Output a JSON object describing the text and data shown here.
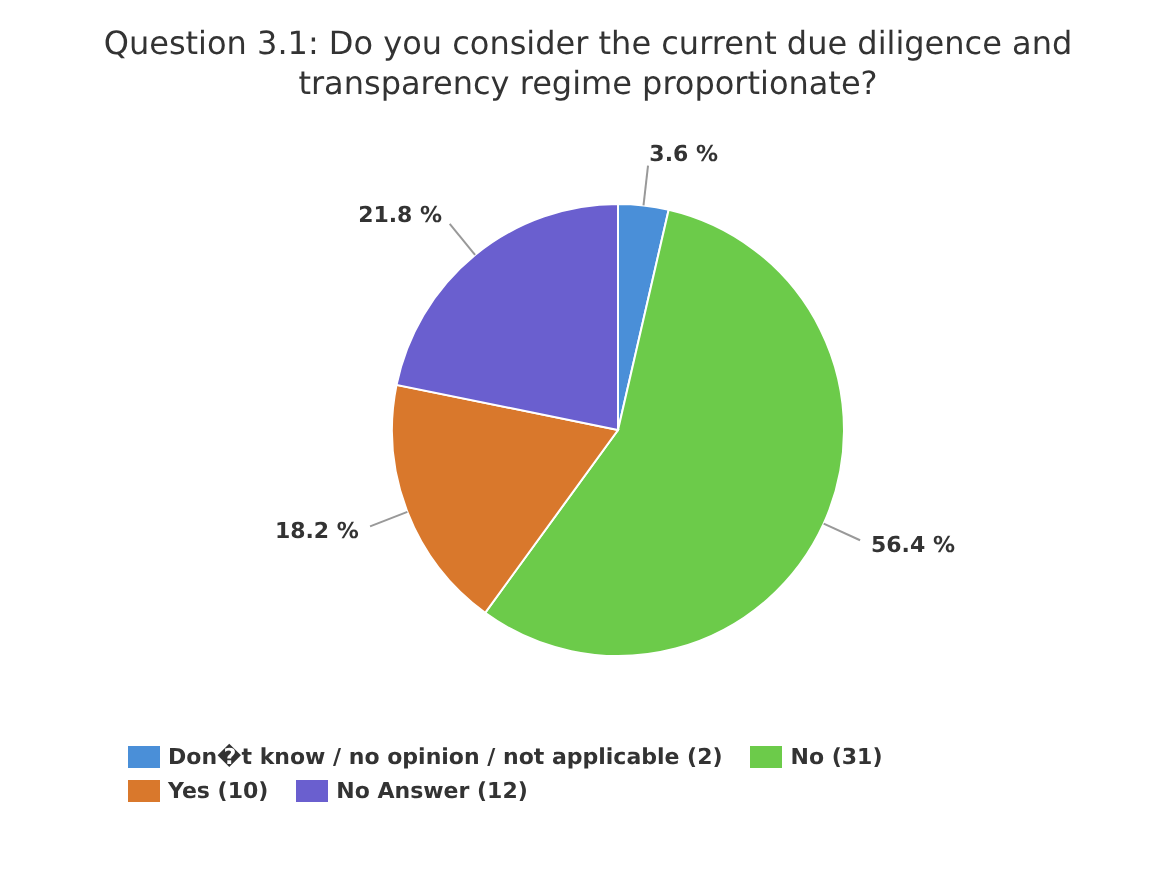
{
  "chart_data": {
    "type": "pie",
    "title": "Question 3.1: Do you consider the current due diligence and transparency regime proportionate?",
    "categories": [
      "Don�t know / no opinion / not applicable (2)",
      "No (31)",
      "Yes (10)",
      "No Answer (12)"
    ],
    "values": [
      3.6,
      56.4,
      18.2,
      21.8
    ],
    "colors": [
      "#4a8fd8",
      "#6ccb4a",
      "#d9782c",
      "#6a5fcf"
    ],
    "value_labels": [
      "3.6 %",
      "56.4 %",
      "18.2 %",
      "21.8 %"
    ],
    "legend": "bottom"
  }
}
